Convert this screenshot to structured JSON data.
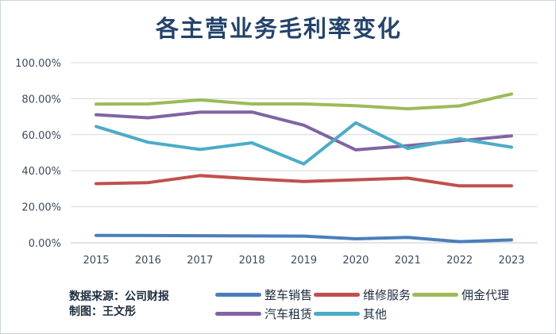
{
  "chart_data": {
    "type": "line",
    "title": "各主营业务毛利率变化",
    "categories": [
      "2015",
      "2016",
      "2017",
      "2018",
      "2019",
      "2020",
      "2021",
      "2022",
      "2023"
    ],
    "y_ticks": [
      "0.00%",
      "20.00%",
      "40.00%",
      "60.00%",
      "80.00%",
      "100.00%"
    ],
    "ylim": [
      0,
      100
    ],
    "xlabel": "",
    "ylabel": "",
    "grid": true,
    "legend_position": "bottom",
    "series": [
      {
        "name": "整车销售",
        "color": "#4a7ebb",
        "values": [
          4.1,
          4.0,
          3.9,
          3.8,
          3.7,
          2.2,
          3.0,
          0.6,
          1.6
        ]
      },
      {
        "name": "维修服务",
        "color": "#c0504d",
        "values": [
          32.8,
          33.4,
          37.3,
          35.5,
          34.0,
          35.0,
          35.9,
          31.6,
          31.6
        ]
      },
      {
        "name": "佣金代理",
        "color": "#9bbb59",
        "values": [
          77.0,
          77.1,
          79.3,
          77.1,
          77.1,
          76.1,
          74.4,
          76.0,
          82.6
        ]
      },
      {
        "name": "汽车租赁",
        "color": "#8064a2",
        "values": [
          71.1,
          69.4,
          72.5,
          72.6,
          65.3,
          51.6,
          53.9,
          56.6,
          59.4
        ]
      },
      {
        "name": "其他",
        "color": "#4bacc6",
        "values": [
          64.6,
          55.8,
          51.8,
          55.5,
          43.8,
          66.6,
          52.4,
          57.7,
          53.1
        ]
      }
    ]
  },
  "source": {
    "line1": "数据来源：公司财报",
    "line2": "制图：王文彤"
  }
}
